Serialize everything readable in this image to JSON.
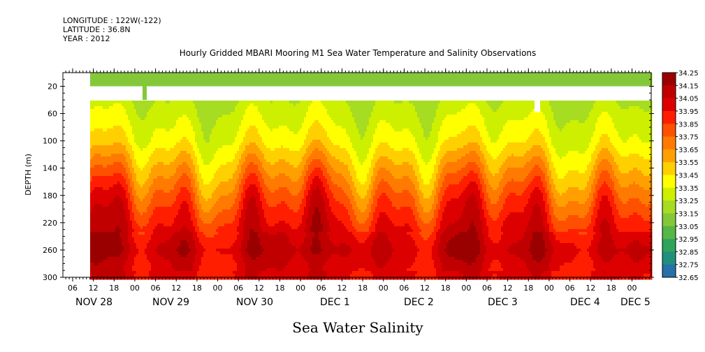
{
  "header": {
    "lines": [
      "LONGITUDE : 122W(-122)",
      "LATITUDE : 36.8N",
      "YEAR : 2012"
    ]
  },
  "chart_data": {
    "type": "heatmap",
    "title": "Hourly Gridded MBARI Mooring M1 Sea Water Temperature and Salinity Observations",
    "variable_label": "Sea Water Salinity",
    "ylabel": "DEPTH (m)",
    "y_inverted": true,
    "ylim": [
      300,
      0
    ],
    "y_ticks": [
      20,
      60,
      100,
      140,
      180,
      220,
      260,
      300
    ],
    "x_hour_ticks": [
      "06",
      "12",
      "18",
      "00",
      "06",
      "12",
      "18",
      "00",
      "06",
      "12",
      "18",
      "00",
      "06",
      "12",
      "18",
      "00",
      "06",
      "12",
      "18",
      "00",
      "06",
      "12",
      "18",
      "00",
      "06",
      "12",
      "18",
      "00",
      "06",
      "12",
      "18",
      "00"
    ],
    "x_day_labels": [
      "NOV 28",
      "NOV 29",
      "NOV 30",
      "DEC  1",
      "DEC  2",
      "DEC  3",
      "DEC  4",
      "DEC  5"
    ],
    "colorbar": {
      "levels": [
        34.25,
        34.15,
        34.05,
        33.95,
        33.85,
        33.75,
        33.65,
        33.55,
        33.45,
        33.35,
        33.25,
        33.15,
        33.05,
        32.95,
        32.85,
        32.75,
        32.65
      ],
      "colors": [
        "#9b0000",
        "#c00000",
        "#dd0000",
        "#ff1e00",
        "#ff5000",
        "#ff7a00",
        "#ffa000",
        "#ffd000",
        "#ffff00",
        "#ccf000",
        "#a6dc22",
        "#84c83a",
        "#56b646",
        "#2ea45a",
        "#20907e",
        "#2870a8",
        "#3050d0",
        "#5a3ae0",
        "#a030f0",
        "#e030ff"
      ]
    },
    "data_gaps": [
      "no data before NOV 28 12h",
      "surface band 20-40 m missing"
    ],
    "salinity_profile": {
      "depths": [
        10,
        40,
        60,
        100,
        120,
        140,
        160,
        180,
        200,
        220,
        240,
        260,
        280,
        300
      ],
      "values": [
        33.3,
        33.35,
        33.4,
        33.5,
        33.6,
        33.7,
        33.8,
        33.9,
        33.98,
        34.05,
        34.12,
        34.18,
        34.12,
        34.08
      ]
    }
  }
}
